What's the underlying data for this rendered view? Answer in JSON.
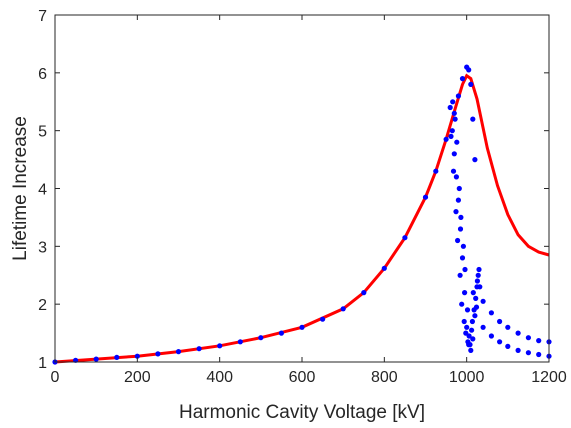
{
  "chart_data": {
    "type": "scatter",
    "title": "",
    "xlabel": "Harmonic Cavity Voltage [kV]",
    "ylabel": "Lifetime Increase",
    "xlim": [
      0,
      1200
    ],
    "ylim": [
      1,
      7
    ],
    "xticks": [
      "0",
      "200",
      "400",
      "600",
      "800",
      "1000",
      "1200"
    ],
    "yticks": [
      "1",
      "2",
      "3",
      "4",
      "5",
      "6",
      "7"
    ],
    "grid": false,
    "legend": "none",
    "box": true,
    "colors": {
      "line": "#ff0000",
      "points": "#0000ff",
      "axis": "#262626"
    },
    "series": [
      {
        "kind": "line",
        "color": "#ff0000",
        "x": [
          0,
          100,
          200,
          300,
          400,
          500,
          600,
          700,
          750,
          800,
          850,
          900,
          925,
          950,
          975,
          990,
          1000,
          1010,
          1025,
          1050,
          1075,
          1100,
          1125,
          1150,
          1175,
          1200
        ],
        "y": [
          1.0,
          1.05,
          1.1,
          1.18,
          1.28,
          1.42,
          1.6,
          1.92,
          2.2,
          2.62,
          3.15,
          3.85,
          4.3,
          4.85,
          5.45,
          5.8,
          5.95,
          5.9,
          5.55,
          4.7,
          4.05,
          3.55,
          3.2,
          3.0,
          2.9,
          2.85
        ]
      },
      {
        "kind": "scatter",
        "color": "#0000ff",
        "x": [
          0,
          50,
          100,
          150,
          200,
          250,
          300,
          350,
          400,
          450,
          500,
          550,
          600,
          650,
          700,
          750,
          800,
          850,
          900,
          925,
          950,
          970,
          980,
          990,
          1000,
          1005,
          1010,
          1015,
          1020,
          1040,
          1060,
          1080,
          1100,
          1125,
          1150,
          1175,
          1200,
          1040,
          1060,
          1080,
          1100,
          1125,
          1150,
          1175,
          1200
        ],
        "y": [
          1.0,
          1.03,
          1.05,
          1.08,
          1.1,
          1.14,
          1.18,
          1.23,
          1.28,
          1.35,
          1.42,
          1.5,
          1.6,
          1.74,
          1.92,
          2.2,
          2.62,
          3.15,
          3.85,
          4.3,
          4.85,
          5.3,
          5.6,
          5.9,
          6.1,
          6.05,
          5.8,
          5.2,
          4.5,
          2.05,
          1.85,
          1.7,
          1.6,
          1.5,
          1.42,
          1.37,
          1.35,
          1.6,
          1.45,
          1.35,
          1.27,
          1.2,
          1.16,
          1.13,
          1.1
        ]
      },
      {
        "kind": "scatter",
        "color": "#0000ff",
        "x": [
          960,
          965,
          970,
          975,
          980,
          985,
          990,
          995,
          1000,
          1005,
          1010,
          1015,
          1020,
          1025,
          1030,
          962,
          968,
          974,
          978,
          984,
          988,
          994,
          998,
          1003,
          1008,
          1012,
          1018,
          1022,
          1028,
          966,
          972,
          976,
          982,
          986,
          992,
          996,
          1002,
          1006,
          1014,
          1016,
          1024,
          1026,
          1032
        ],
        "y": [
          5.4,
          5.0,
          4.6,
          4.2,
          3.8,
          3.3,
          2.8,
          2.2,
          1.6,
          1.3,
          1.2,
          1.4,
          1.8,
          2.3,
          2.6,
          4.9,
          4.3,
          3.6,
          3.1,
          2.5,
          2.0,
          1.7,
          1.5,
          1.35,
          1.3,
          1.55,
          1.9,
          2.1,
          2.5,
          5.5,
          5.2,
          4.8,
          4.0,
          3.5,
          3.0,
          2.6,
          1.9,
          1.45,
          1.7,
          2.2,
          1.95,
          2.4,
          2.3
        ]
      }
    ]
  }
}
